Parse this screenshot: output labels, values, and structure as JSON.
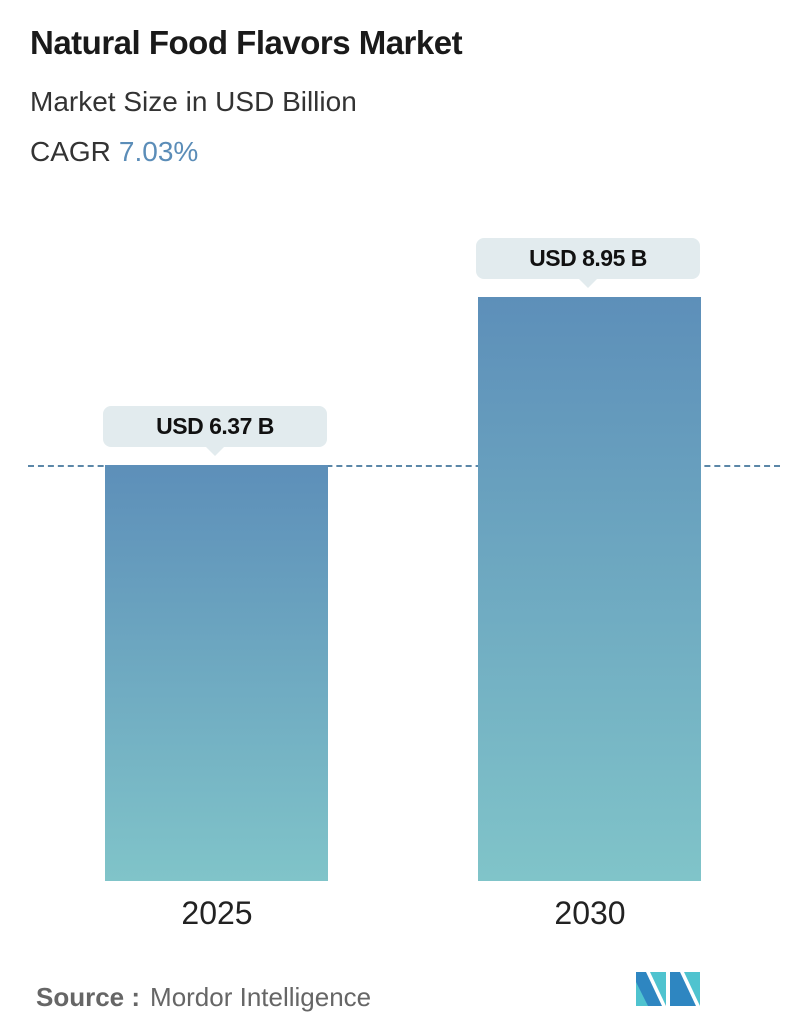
{
  "chart_data": {
    "type": "bar",
    "title": "Natural Food Flavors Market",
    "subtitle": "Market Size in USD Billion",
    "cagr_label": "CAGR",
    "cagr_value": "7.03%",
    "categories": [
      "2025",
      "2030"
    ],
    "values": [
      6.37,
      8.95
    ],
    "data_labels": [
      "USD 6.37 B",
      "USD 8.95 B"
    ],
    "ylim": [
      0,
      8.95
    ],
    "reference_line": 6.37,
    "grid": false,
    "colors": {
      "bar_top": "#5d8fb9",
      "bar_bottom": "#80c4c9",
      "accent": "#5b8db8"
    }
  },
  "footer": {
    "source_label": "Source :",
    "source_value": "Mordor Intelligence",
    "logo_text": "MI"
  }
}
